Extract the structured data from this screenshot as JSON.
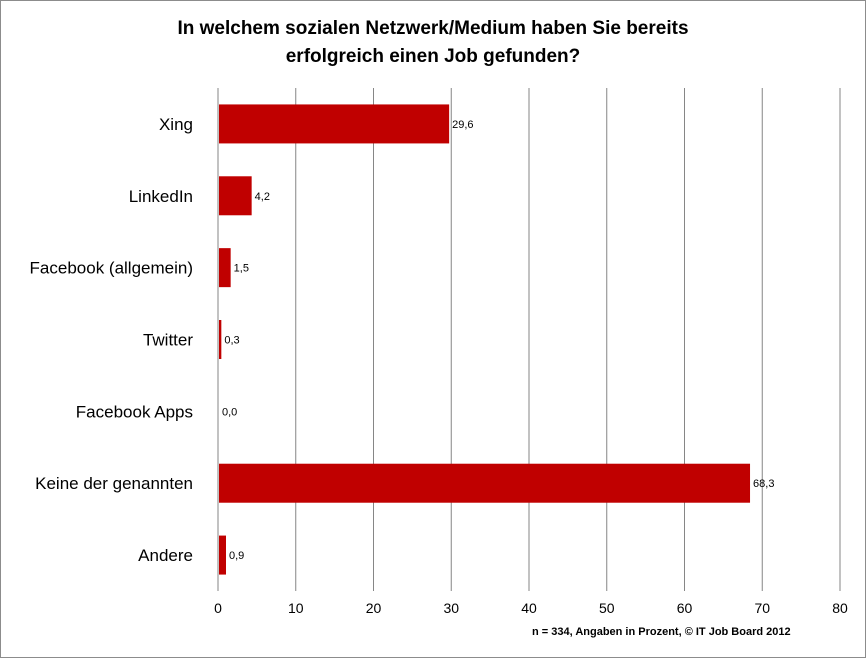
{
  "chart_data": {
    "type": "bar",
    "orientation": "horizontal",
    "title_lines": [
      "In welchem sozialen Netzwerk/Medium haben Sie bereits",
      "erfolgreich einen Job gefunden?"
    ],
    "categories": [
      "Xing",
      "LinkedIn",
      "Facebook (allgemein)",
      "Twitter",
      "Facebook Apps",
      "Keine der genannten",
      "Andere"
    ],
    "values": [
      29.6,
      4.2,
      1.5,
      0.3,
      0.0,
      68.3,
      0.9
    ],
    "data_labels": [
      "29,6",
      "4,2",
      "1,5",
      "0,3",
      "0,0",
      "68,3",
      "0,9"
    ],
    "xlim": [
      0,
      80
    ],
    "xticks": [
      0,
      10,
      20,
      30,
      40,
      50,
      60,
      70,
      80
    ],
    "grid": true,
    "bar_color": "#C00000",
    "grid_color": "#868686",
    "footnote": "n = 334, Angaben in Prozent, © IT Job Board  2012"
  }
}
